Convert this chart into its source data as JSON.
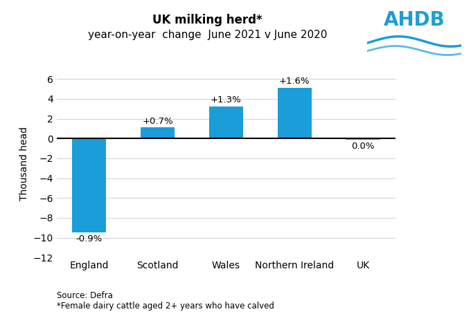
{
  "categories": [
    "England",
    "Scotland",
    "Wales",
    "Northern Ireland",
    "UK"
  ],
  "values": [
    -9.5,
    1.1,
    3.2,
    5.1,
    -0.1
  ],
  "labels": [
    "-0.9%",
    "+0.7%",
    "+1.3%",
    "+1.6%",
    "0.0%"
  ],
  "bar_color": "#1b9dd9",
  "title_line1": "UK milking herd*",
  "title_line2": "year-on-year  change  June 2021 v June 2020",
  "ylabel": "Thousand head",
  "ylim": [
    -12,
    7
  ],
  "yticks": [
    -12,
    -10,
    -8,
    -6,
    -4,
    -2,
    0,
    2,
    4,
    6
  ],
  "source_text": "Source: Defra\n*Female dairy cattle aged 2+ years who have calved",
  "background_color": "#ffffff",
  "grid_color": "#d0d0d0",
  "title_fontsize": 12,
  "subtitle_fontsize": 11,
  "label_fontsize": 9.5,
  "tick_fontsize": 10,
  "ylabel_fontsize": 10,
  "source_fontsize": 8.5,
  "ahdb_color": "#1b9dd9"
}
